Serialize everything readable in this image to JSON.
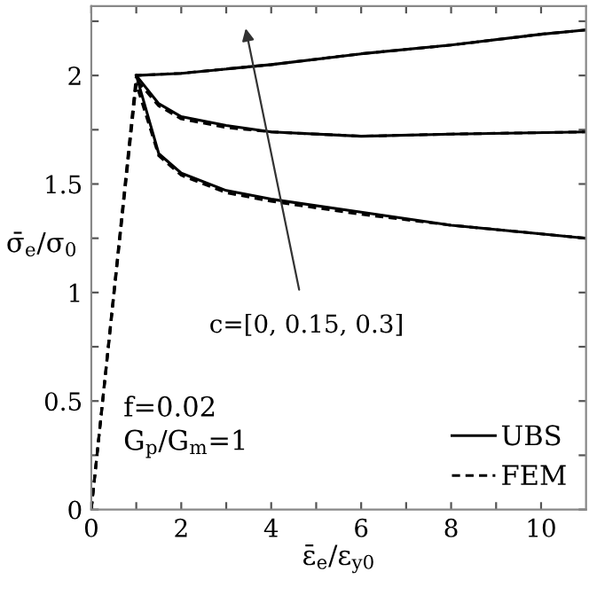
{
  "chart_data": {
    "type": "line",
    "xlabel": "ε̄$_{e}$/ε$_{y0}$",
    "ylabel": "σ̄$_{e}$/σ$_{0}$",
    "xlim": [
      0,
      11
    ],
    "ylim": [
      0,
      2.32
    ],
    "xticks": [
      0,
      {
        "value": 1,
        "label": null
      },
      2,
      {
        "value": 3,
        "label": null
      },
      4,
      {
        "value": 5,
        "label": null
      },
      6,
      {
        "value": 7,
        "label": null
      },
      8,
      {
        "value": 9,
        "label": null
      },
      10
    ],
    "yticks": [
      0,
      {
        "value": 0.25,
        "label": null
      },
      0.5,
      {
        "value": 0.75,
        "label": null
      },
      1,
      {
        "value": 1.25,
        "label": null
      },
      1.5,
      {
        "value": 1.75,
        "label": null
      },
      2,
      {
        "value": 2.25,
        "label": null
      }
    ],
    "series": [
      {
        "name": "UBS",
        "color": "#000000",
        "line_style": "solid",
        "x": [
          1,
          2,
          4,
          6,
          8,
          10,
          11
        ],
        "values": [
          2.0,
          2.01,
          2.05,
          2.1,
          2.14,
          2.19,
          2.21
        ]
      },
      {
        "color": "#000000",
        "line_style": "solid",
        "x": [
          1,
          1.5,
          2,
          3,
          4,
          6,
          8,
          11
        ],
        "values": [
          2.0,
          1.87,
          1.81,
          1.77,
          1.74,
          1.72,
          1.73,
          1.74
        ]
      },
      {
        "color": "#000000",
        "line_style": "solid",
        "x": [
          1,
          1.5,
          2,
          3,
          4,
          6,
          8,
          10,
          11
        ],
        "values": [
          2.0,
          1.64,
          1.55,
          1.47,
          1.43,
          1.37,
          1.31,
          1.27,
          1.25
        ]
      },
      {
        "name": "FEM",
        "color": "#000000",
        "line_style": "dashed",
        "x": [
          0,
          1,
          2,
          4,
          6,
          8,
          10,
          11
        ],
        "values": [
          0,
          2.0,
          2.01,
          2.05,
          2.1,
          2.14,
          2.19,
          2.21
        ]
      },
      {
        "color": "#000000",
        "line_style": "dashed",
        "x": [
          0,
          1,
          1.5,
          2,
          3,
          4,
          6,
          8,
          11
        ],
        "values": [
          0,
          1.98,
          1.86,
          1.8,
          1.76,
          1.74,
          1.72,
          1.73,
          1.74
        ]
      },
      {
        "color": "#000000",
        "line_style": "dashed",
        "x": [
          0,
          1,
          1.5,
          2,
          3,
          4,
          6,
          8,
          10,
          11
        ],
        "values": [
          0,
          1.96,
          1.63,
          1.54,
          1.46,
          1.42,
          1.36,
          1.31,
          1.27,
          1.25
        ]
      }
    ],
    "annotations": [
      "c=[0, 0.15, 0.3]",
      "f=0.02",
      "G$_{p}$/G$_{m}$=1"
    ],
    "legend": "bottom right",
    "grid": false,
    "marker": "none"
  }
}
